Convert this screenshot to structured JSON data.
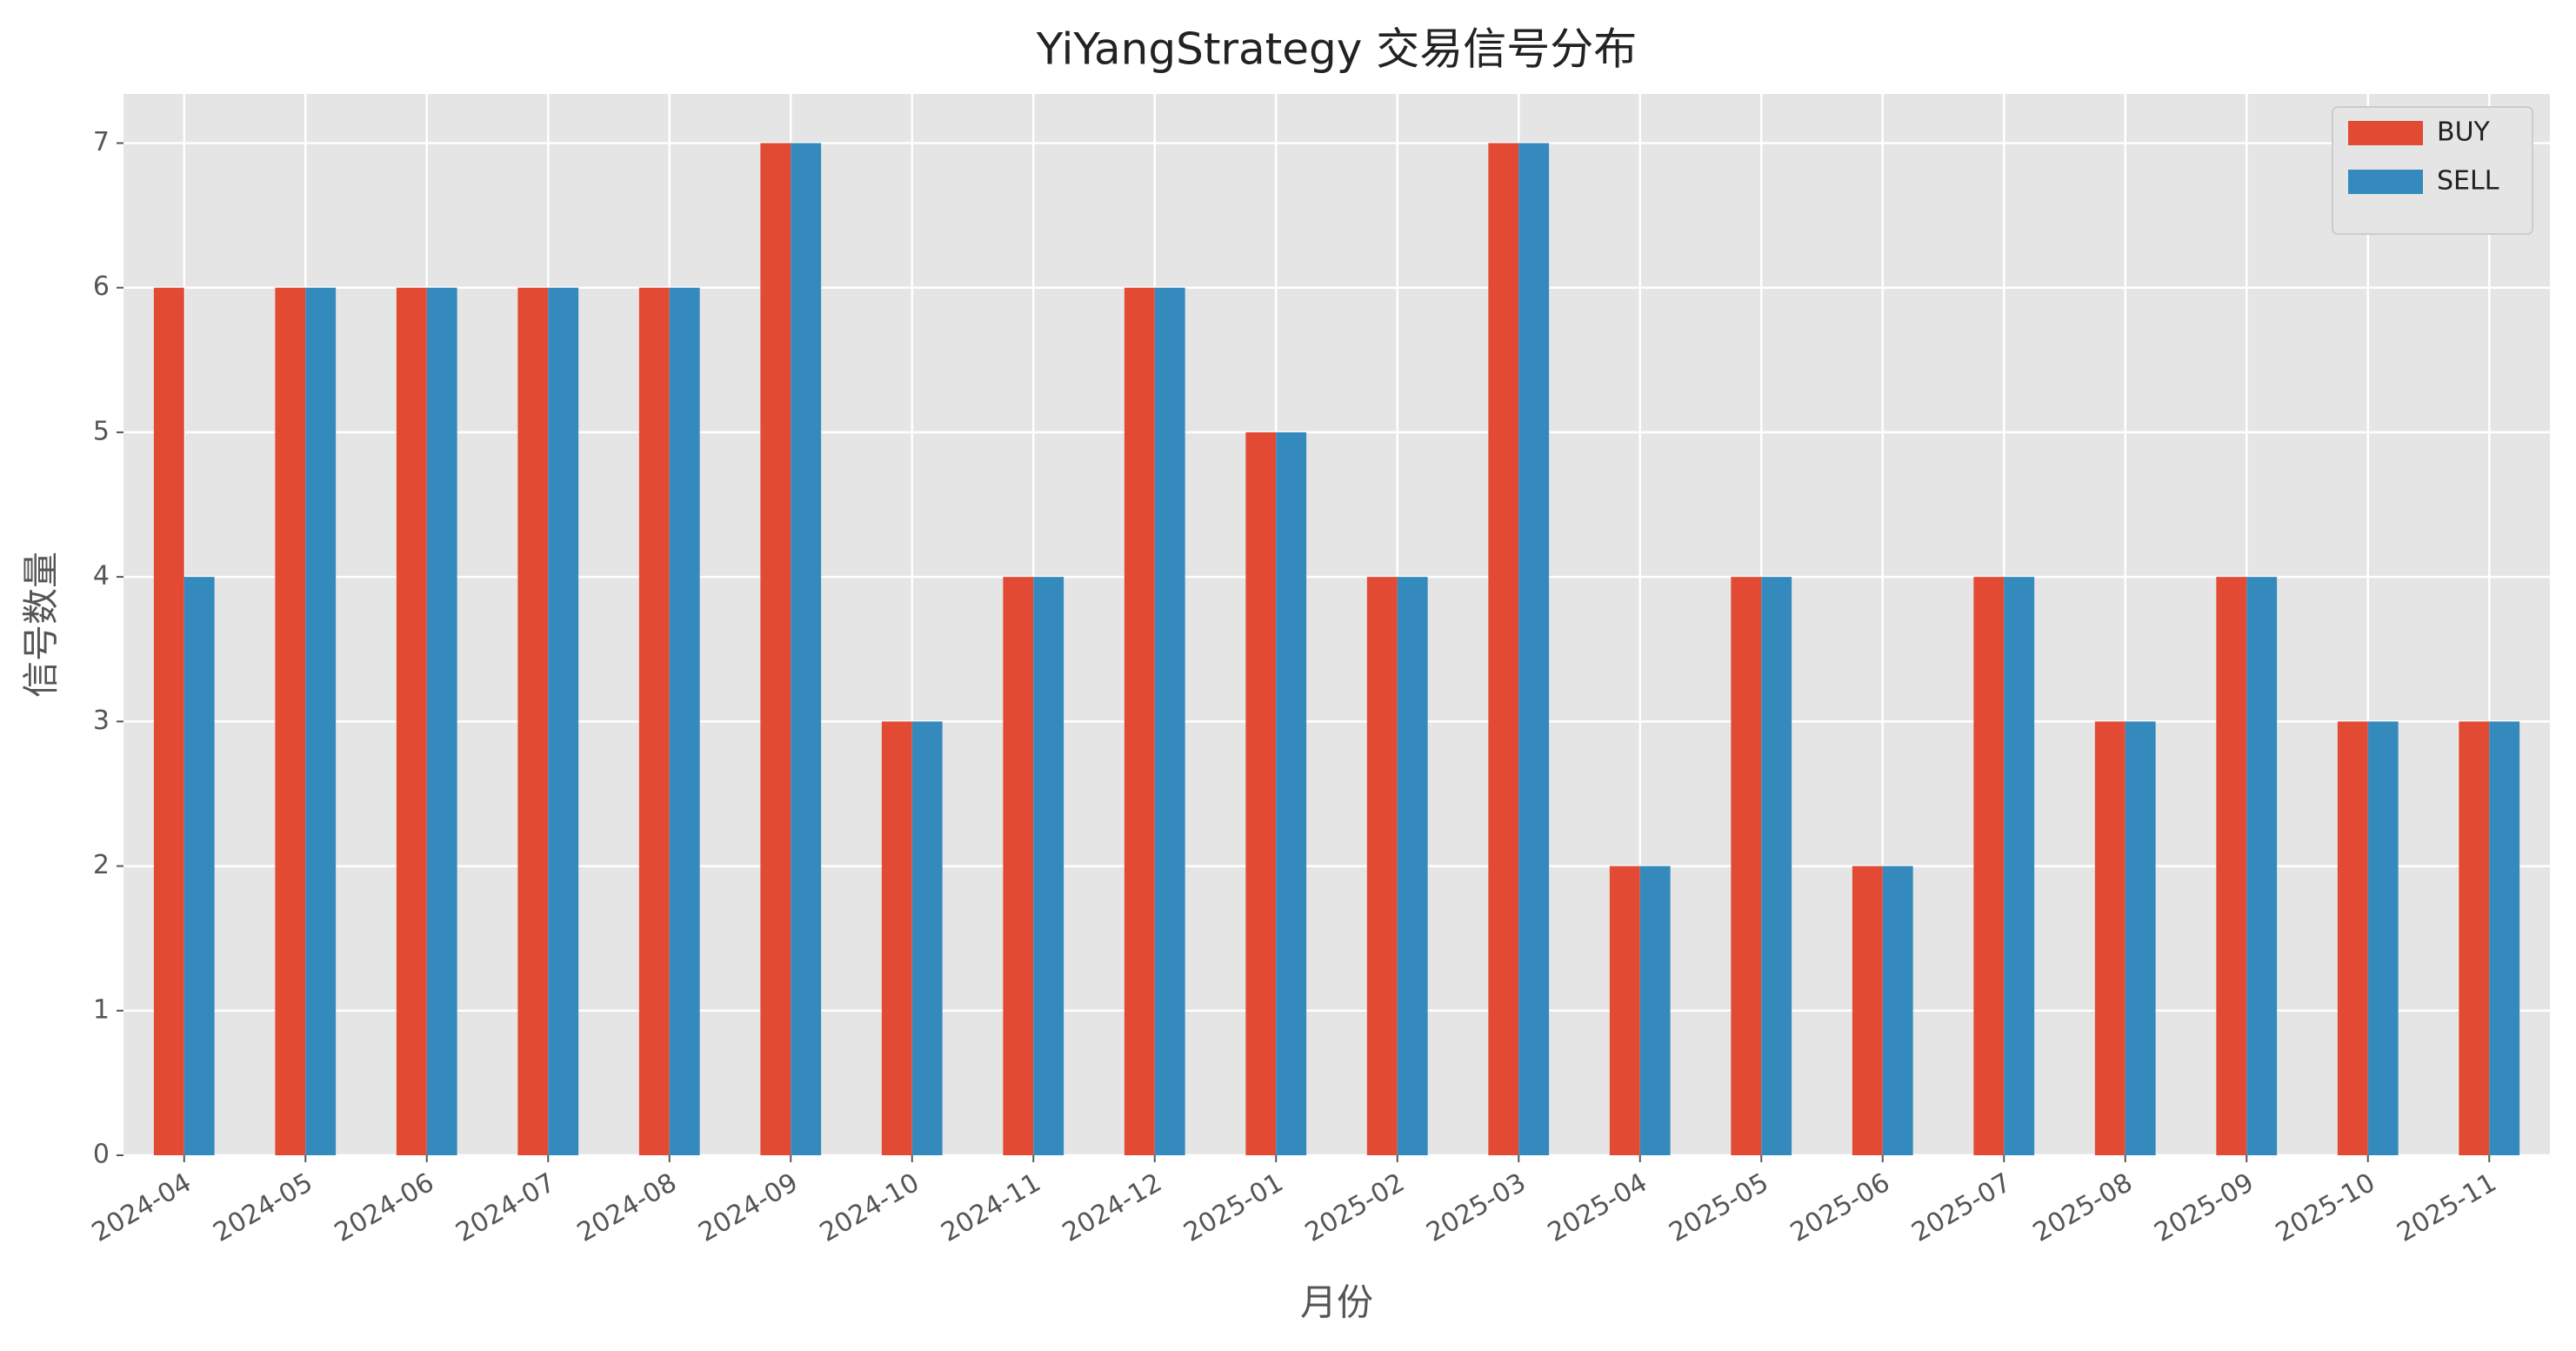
{
  "chart_data": {
    "type": "bar",
    "title": "YiYangStrategy 交易信号分布",
    "xlabel": "月份",
    "ylabel": "信号数量",
    "categories": [
      "2024-04",
      "2024-05",
      "2024-06",
      "2024-07",
      "2024-08",
      "2024-09",
      "2024-10",
      "2024-11",
      "2024-12",
      "2025-01",
      "2025-02",
      "2025-03",
      "2025-04",
      "2025-05",
      "2025-06",
      "2025-07",
      "2025-08",
      "2025-09",
      "2025-10",
      "2025-11"
    ],
    "series": [
      {
        "name": "BUY",
        "color": "#E24A33",
        "values": [
          6,
          6,
          6,
          6,
          6,
          7,
          3,
          4,
          6,
          5,
          4,
          7,
          2,
          4,
          2,
          4,
          3,
          4,
          3,
          3
        ]
      },
      {
        "name": "SELL",
        "color": "#348ABD",
        "values": [
          4,
          6,
          6,
          6,
          6,
          7,
          3,
          4,
          6,
          5,
          4,
          7,
          2,
          4,
          2,
          4,
          3,
          4,
          3,
          3
        ]
      }
    ],
    "ylim": [
      0,
      7.34
    ],
    "yticks": [
      0,
      1,
      2,
      3,
      4,
      5,
      6,
      7
    ],
    "grid": true,
    "legend": "upper right",
    "background": "#E5E5E5"
  }
}
